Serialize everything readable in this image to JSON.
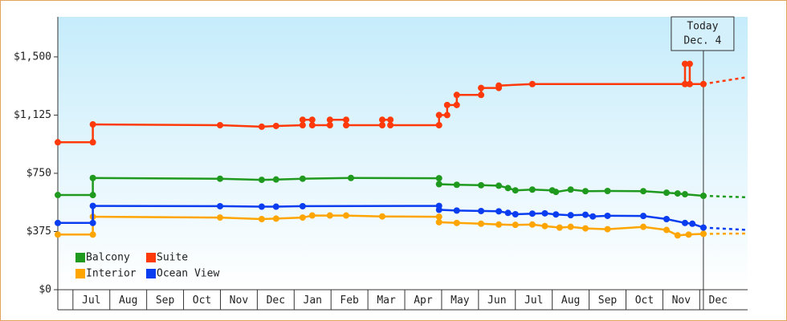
{
  "chart_data": {
    "type": "line",
    "xlim": [
      6.59,
      25.3
    ],
    "ylim": [
      0,
      1758
    ],
    "yticks": [
      {
        "value": 0,
        "label": "$0"
      },
      {
        "value": 375,
        "label": "$375"
      },
      {
        "value": 750,
        "label": "$750"
      },
      {
        "value": 1125,
        "label": "$1,125"
      },
      {
        "value": 1500,
        "label": "$1,500"
      }
    ],
    "xticks": [
      {
        "value": 7,
        "label": "Jul"
      },
      {
        "value": 8,
        "label": "Aug"
      },
      {
        "value": 9,
        "label": "Sep"
      },
      {
        "value": 10,
        "label": "Oct"
      },
      {
        "value": 11,
        "label": "Nov"
      },
      {
        "value": 12,
        "label": "Dec"
      },
      {
        "value": 13,
        "label": "Jan"
      },
      {
        "value": 14,
        "label": "Feb"
      },
      {
        "value": 15,
        "label": "Mar"
      },
      {
        "value": 16,
        "label": "Apr"
      },
      {
        "value": 17,
        "label": "May"
      },
      {
        "value": 18,
        "label": "Jun"
      },
      {
        "value": 19,
        "label": "Jul"
      },
      {
        "value": 20,
        "label": "Aug"
      },
      {
        "value": 21,
        "label": "Sep"
      },
      {
        "value": 22,
        "label": "Oct"
      },
      {
        "value": 23,
        "label": "Nov"
      },
      {
        "value": 24,
        "label": "Dec"
      }
    ],
    "today": {
      "x": 24.1,
      "label": "Today",
      "date": "Dec. 4"
    },
    "forecast_x": [
      24.1,
      25.3
    ],
    "series": [
      {
        "name": "Balcony",
        "color": "#1f9a1f",
        "x": [
          6.59,
          7.54,
          7.54,
          10.99,
          12.12,
          12.51,
          13.23,
          14.54,
          16.93,
          16.93,
          17.41,
          18.07,
          18.55,
          18.8,
          19.0,
          19.46,
          20.0,
          20.1,
          20.5,
          20.9,
          21.5,
          22.47,
          23.1,
          23.4,
          23.6,
          24.1
        ],
        "values": [
          610,
          610,
          720,
          715,
          708,
          710,
          715,
          720,
          718,
          680,
          676,
          673,
          670,
          655,
          640,
          645,
          640,
          630,
          645,
          635,
          636,
          635,
          625,
          620,
          615,
          605
        ],
        "forecast": [
          605,
          595
        ]
      },
      {
        "name": "Suite",
        "color": "#ff3a0a",
        "x": [
          6.59,
          7.54,
          7.54,
          10.99,
          12.12,
          12.51,
          13.23,
          13.23,
          13.49,
          13.49,
          13.97,
          13.97,
          14.41,
          14.41,
          15.39,
          15.39,
          15.61,
          15.61,
          16.93,
          16.93,
          17.15,
          17.15,
          17.41,
          17.41,
          18.07,
          18.07,
          18.55,
          18.55,
          19.46,
          23.6,
          23.6,
          23.73,
          23.73,
          24.1
        ],
        "values": [
          950,
          950,
          1065,
          1060,
          1050,
          1055,
          1060,
          1095,
          1095,
          1060,
          1060,
          1095,
          1095,
          1060,
          1060,
          1095,
          1095,
          1060,
          1060,
          1125,
          1125,
          1190,
          1190,
          1255,
          1255,
          1300,
          1300,
          1315,
          1325,
          1325,
          1455,
          1455,
          1325,
          1325
        ],
        "forecast": [
          1325,
          1370
        ]
      },
      {
        "name": "Interior",
        "color": "#ffa500",
        "x": [
          6.59,
          7.54,
          7.54,
          10.99,
          12.12,
          12.51,
          13.23,
          13.49,
          13.97,
          14.41,
          15.39,
          16.93,
          16.93,
          17.41,
          18.07,
          18.55,
          19.0,
          19.46,
          19.8,
          20.2,
          20.5,
          20.9,
          21.5,
          22.47,
          23.1,
          23.4,
          23.7,
          24.1
        ],
        "values": [
          355,
          355,
          470,
          465,
          455,
          458,
          465,
          478,
          478,
          478,
          472,
          470,
          435,
          430,
          425,
          420,
          418,
          420,
          410,
          400,
          405,
          395,
          390,
          405,
          385,
          350,
          355,
          360
        ],
        "forecast": [
          360,
          362
        ]
      },
      {
        "name": "Ocean View",
        "color": "#0a3cf0",
        "x": [
          6.59,
          7.54,
          7.54,
          10.99,
          12.12,
          12.51,
          13.23,
          16.93,
          16.93,
          17.41,
          18.07,
          18.55,
          18.8,
          19.0,
          19.46,
          19.8,
          20.1,
          20.5,
          20.9,
          21.1,
          21.5,
          22.47,
          23.1,
          23.6,
          23.8,
          24.1
        ],
        "values": [
          430,
          430,
          540,
          538,
          535,
          535,
          538,
          540,
          515,
          510,
          507,
          505,
          495,
          486,
          490,
          492,
          485,
          480,
          483,
          472,
          476,
          475,
          455,
          430,
          425,
          400
        ],
        "forecast": [
          400,
          385
        ]
      }
    ]
  }
}
